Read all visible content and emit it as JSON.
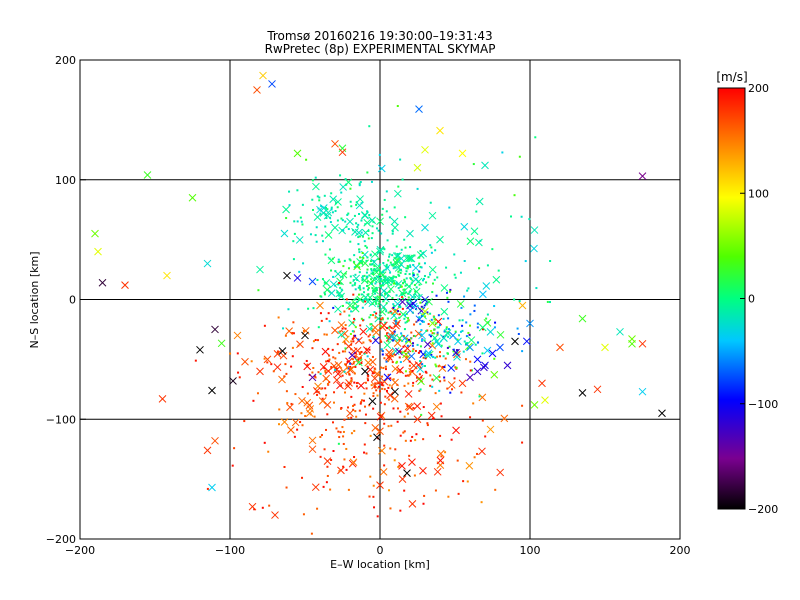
{
  "chart_data": {
    "type": "scatter",
    "title": "Tromsø 20160216 19:30:00–19:31:43",
    "subtitle": "RwPretec (8p) EXPERIMENTAL SKYMAP",
    "xlabel": "E–W location [km]",
    "ylabel": "N–S location [km]",
    "xlim": [
      -200,
      200
    ],
    "ylim": [
      -200,
      200
    ],
    "xticks": [
      "−200",
      "−100",
      "0",
      "100",
      "200"
    ],
    "yticks": [
      "−200",
      "−100",
      "0",
      "100",
      "200"
    ],
    "grid": true,
    "colorbar": {
      "label": "[m/s]",
      "range": [
        -200,
        200
      ],
      "ticks": [
        "−200",
        "−100",
        "0",
        "100",
        "200"
      ],
      "colormap": "rainbow (black-purple-blue-cyan-green-yellow-red)"
    },
    "marker_types": [
      "x",
      "dot"
    ],
    "points": [
      [
        -82,
        175,
        170,
        "x"
      ],
      [
        -78,
        187,
        120,
        "x"
      ],
      [
        -72,
        180,
        -80,
        "x"
      ],
      [
        26,
        159,
        -70,
        "x"
      ],
      [
        -30,
        130,
        170,
        "x"
      ],
      [
        -25,
        123,
        180,
        "x"
      ],
      [
        40,
        141,
        110,
        "x"
      ],
      [
        55,
        122,
        100,
        "x"
      ],
      [
        70,
        112,
        -20,
        "x"
      ],
      [
        30,
        125,
        90,
        "x"
      ],
      [
        25,
        110,
        85,
        "x"
      ],
      [
        -55,
        122,
        40,
        "x"
      ],
      [
        -155,
        104,
        30,
        "x"
      ],
      [
        -125,
        85,
        40,
        "x"
      ],
      [
        175,
        103,
        -150,
        "x"
      ],
      [
        -190,
        55,
        50,
        "x"
      ],
      [
        -188,
        40,
        90,
        "x"
      ],
      [
        -142,
        20,
        110,
        "x"
      ],
      [
        -115,
        30,
        -30,
        "x"
      ],
      [
        -80,
        25,
        -10,
        "x"
      ],
      [
        -62,
        20,
        -200,
        "x"
      ],
      [
        -55,
        18,
        -110,
        "x"
      ],
      [
        -45,
        15,
        -80,
        "x"
      ],
      [
        -170,
        12,
        180,
        "x"
      ],
      [
        -185,
        14,
        -180,
        "x"
      ],
      [
        -40,
        -5,
        150,
        "x"
      ],
      [
        -28,
        -8,
        -10,
        "x"
      ],
      [
        -20,
        -5,
        10,
        "x"
      ],
      [
        -110,
        -25,
        -180,
        "x"
      ],
      [
        -120,
        -42,
        -200,
        "x"
      ],
      [
        -112,
        -76,
        -200,
        "x"
      ],
      [
        -98,
        -68,
        -190,
        "x"
      ],
      [
        -90,
        -52,
        170,
        "x"
      ],
      [
        -145,
        -83,
        180,
        "x"
      ],
      [
        -115,
        -126,
        180,
        "x"
      ],
      [
        -110,
        -118,
        170,
        "x"
      ],
      [
        -112,
        -157,
        -40,
        "x"
      ],
      [
        -80,
        -60,
        180,
        "x"
      ],
      [
        -65,
        -43,
        -200,
        "x"
      ],
      [
        -60,
        -90,
        170,
        "x"
      ],
      [
        -45,
        -65,
        -140,
        "x"
      ],
      [
        -35,
        -88,
        170,
        "x"
      ],
      [
        -20,
        -95,
        170,
        "x"
      ],
      [
        -10,
        -60,
        -200,
        "x"
      ],
      [
        -5,
        -85,
        -200,
        "x"
      ],
      [
        0,
        -110,
        170,
        "x"
      ],
      [
        5,
        -65,
        -100,
        "x"
      ],
      [
        -2,
        -115,
        -200,
        "x"
      ],
      [
        10,
        -77,
        -200,
        "x"
      ],
      [
        20,
        -90,
        180,
        "x"
      ],
      [
        25,
        -100,
        180,
        "x"
      ],
      [
        -85,
        -173,
        180,
        "x"
      ],
      [
        -70,
        -180,
        180,
        "x"
      ],
      [
        -45,
        -125,
        170,
        "x"
      ],
      [
        -35,
        -135,
        180,
        "x"
      ],
      [
        0,
        -155,
        180,
        "x"
      ],
      [
        15,
        -150,
        180,
        "x"
      ],
      [
        18,
        -145,
        -200,
        "x"
      ],
      [
        55,
        -70,
        180,
        "x"
      ],
      [
        60,
        -65,
        -130,
        "x"
      ],
      [
        70,
        -55,
        -110,
        "x"
      ],
      [
        65,
        -60,
        -120,
        "x"
      ],
      [
        75,
        -45,
        -100,
        "x"
      ],
      [
        80,
        -40,
        -80,
        "x"
      ],
      [
        90,
        -35,
        -200,
        "x"
      ],
      [
        100,
        -20,
        -60,
        "x"
      ],
      [
        103,
        -88,
        50,
        "x"
      ],
      [
        108,
        -70,
        180,
        "x"
      ],
      [
        110,
        -84,
        90,
        "x"
      ],
      [
        120,
        -40,
        170,
        "x"
      ],
      [
        135,
        -78,
        -200,
        "x"
      ],
      [
        145,
        -75,
        180,
        "x"
      ],
      [
        150,
        -40,
        90,
        "x"
      ],
      [
        160,
        -27,
        -20,
        "x"
      ],
      [
        168,
        -37,
        40,
        "x"
      ],
      [
        175,
        -37,
        180,
        "x"
      ],
      [
        175,
        -77,
        -40,
        "x"
      ],
      [
        188,
        -95,
        -200,
        "x"
      ],
      [
        168,
        -33,
        50,
        "x"
      ],
      [
        135,
        -16,
        30,
        "x"
      ],
      [
        103,
        58,
        -20,
        "x"
      ],
      [
        95,
        -5,
        130,
        "x"
      ],
      [
        85,
        -55,
        -120,
        "x"
      ],
      [
        65,
        -50,
        -100,
        "x"
      ],
      [
        60,
        -40,
        -60,
        "x"
      ],
      [
        52,
        -35,
        -40,
        "x"
      ],
      [
        45,
        -28,
        -10,
        "x"
      ],
      [
        35,
        -20,
        60,
        "x"
      ],
      [
        30,
        -10,
        80,
        "x"
      ],
      [
        28,
        -30,
        -40,
        "x"
      ],
      [
        20,
        -5,
        -120,
        "x"
      ],
      [
        15,
        -2,
        -130,
        "x"
      ],
      [
        10,
        -10,
        150,
        "x"
      ],
      [
        30,
        60,
        -30,
        "x"
      ],
      [
        20,
        55,
        -20,
        "x"
      ],
      [
        10,
        60,
        -10,
        "x"
      ],
      [
        0,
        40,
        -10,
        "x"
      ],
      [
        -10,
        70,
        -20,
        "x"
      ],
      [
        -20,
        65,
        -20,
        "x"
      ],
      [
        -30,
        60,
        -10,
        "x"
      ],
      [
        -35,
        70,
        -20,
        "x"
      ],
      [
        -40,
        75,
        -30,
        "x"
      ],
      [
        35,
        70,
        -10,
        "x"
      ],
      [
        40,
        50,
        -10,
        "x"
      ],
      [
        -95,
        -30,
        150,
        "x"
      ],
      [
        -50,
        -30,
        -200,
        "x"
      ],
      [
        -75,
        -50,
        170,
        "x"
      ]
    ],
    "dense_regions": [
      {
        "cx": 0,
        "cy": 15,
        "sx": 18,
        "sy": 15,
        "n": 380,
        "vmin": -30,
        "vmax": 20
      },
      {
        "cx": -10,
        "cy": -55,
        "sx": 30,
        "sy": 25,
        "n": 420,
        "vmin": 150,
        "vmax": 200
      },
      {
        "cx": 35,
        "cy": -30,
        "sx": 22,
        "sy": 18,
        "n": 220,
        "vmin": -130,
        "vmax": 60
      },
      {
        "cx": -25,
        "cy": 70,
        "sx": 20,
        "sy": 15,
        "n": 120,
        "vmin": -30,
        "vmax": 10
      },
      {
        "cx": 0,
        "cy": -120,
        "sx": 45,
        "sy": 35,
        "n": 160,
        "vmin": 140,
        "vmax": 200
      },
      {
        "cx": 20,
        "cy": 30,
        "sx": 45,
        "sy": 50,
        "n": 120,
        "vmin": -40,
        "vmax": 40
      }
    ]
  }
}
